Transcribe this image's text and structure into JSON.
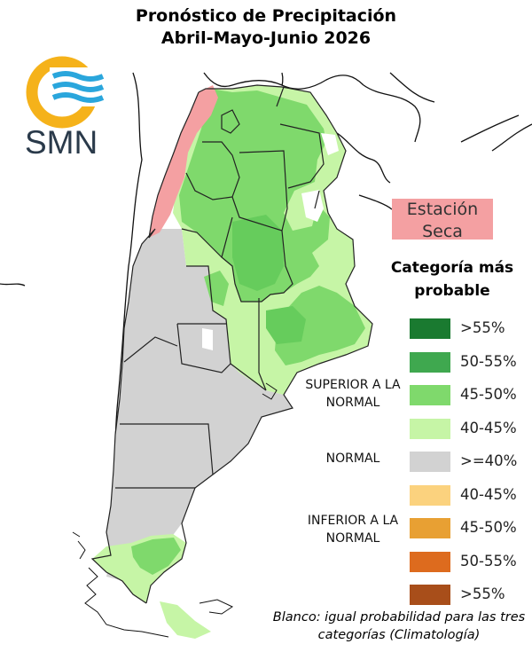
{
  "title_line1": "Pronóstico de Precipitación",
  "title_line2": "Abril-Mayo-Junio 2026",
  "logo_text": "SMN",
  "dry_station_label": "Estación Seca",
  "legend": {
    "title": "Categoría más probable",
    "groups": {
      "superior": "SUPERIOR A LA NORMAL",
      "normal": "NORMAL",
      "inferior": "INFERIOR A LA NORMAL"
    },
    "items": [
      {
        "label": ">55%",
        "color": "#1a7a30"
      },
      {
        "label": "50-55%",
        "color": "#3fa84f"
      },
      {
        "label": "45-50%",
        "color": "#7fd96c"
      },
      {
        "label": "40-45%",
        "color": "#c6f5a6"
      },
      {
        "label": ">=40%",
        "color": "#d2d2d2"
      },
      {
        "label": "40-45%",
        "color": "#fbd27e"
      },
      {
        "label": "45-50%",
        "color": "#e8a033"
      },
      {
        "label": "50-55%",
        "color": "#dd6b1e"
      },
      {
        "label": ">55%",
        "color": "#a84e1a"
      }
    ]
  },
  "note": "Blanco: igual probabilidad para las tres categorías (Climatología)",
  "colors": {
    "dry_season": "#f4a0a2",
    "logo_orange": "#f5b21a",
    "logo_blue": "#2aa6dc"
  }
}
